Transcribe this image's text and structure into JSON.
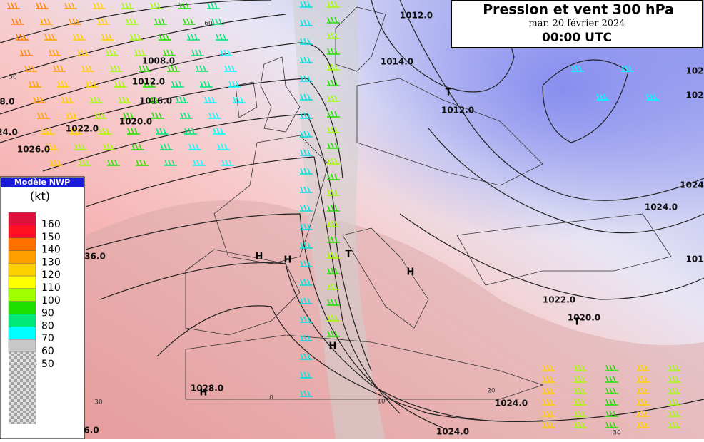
{
  "header": {
    "title": "Pression et vent 300 hPa",
    "date": "mar. 20 février 2024",
    "time": "00:00 UTC"
  },
  "legend": {
    "model": "Modèle NWP",
    "unit": "(kt)",
    "levels": [
      160,
      150,
      140,
      130,
      120,
      110,
      100,
      90,
      80,
      70,
      60,
      50
    ],
    "colors": [
      "#e0103c",
      "#ff1020",
      "#ff7000",
      "#ffa000",
      "#ffd000",
      "#ffff00",
      "#a0ff00",
      "#20e000",
      "#00e878",
      "#00ffff",
      "#c8c8c8"
    ]
  },
  "isobar_labels": [
    "1012.0",
    "1008.0",
    "1012.0",
    "1016.0",
    "1020.0",
    "1022.0",
    "1026.0",
    "8.0",
    "24.0",
    "1014.0",
    "1012.0",
    "1024.0",
    "1022.0",
    "1020.0",
    "1028.0",
    "1024.0",
    "1024.0",
    "36.0",
    "6.0",
    "102",
    "102",
    "1024",
    "101"
  ],
  "centers": [
    "H",
    "H",
    "H",
    "H",
    "H",
    "T",
    "T",
    "T"
  ],
  "graticule": [
    "60",
    "50",
    "30",
    "20",
    "10",
    "0",
    "30"
  ]
}
